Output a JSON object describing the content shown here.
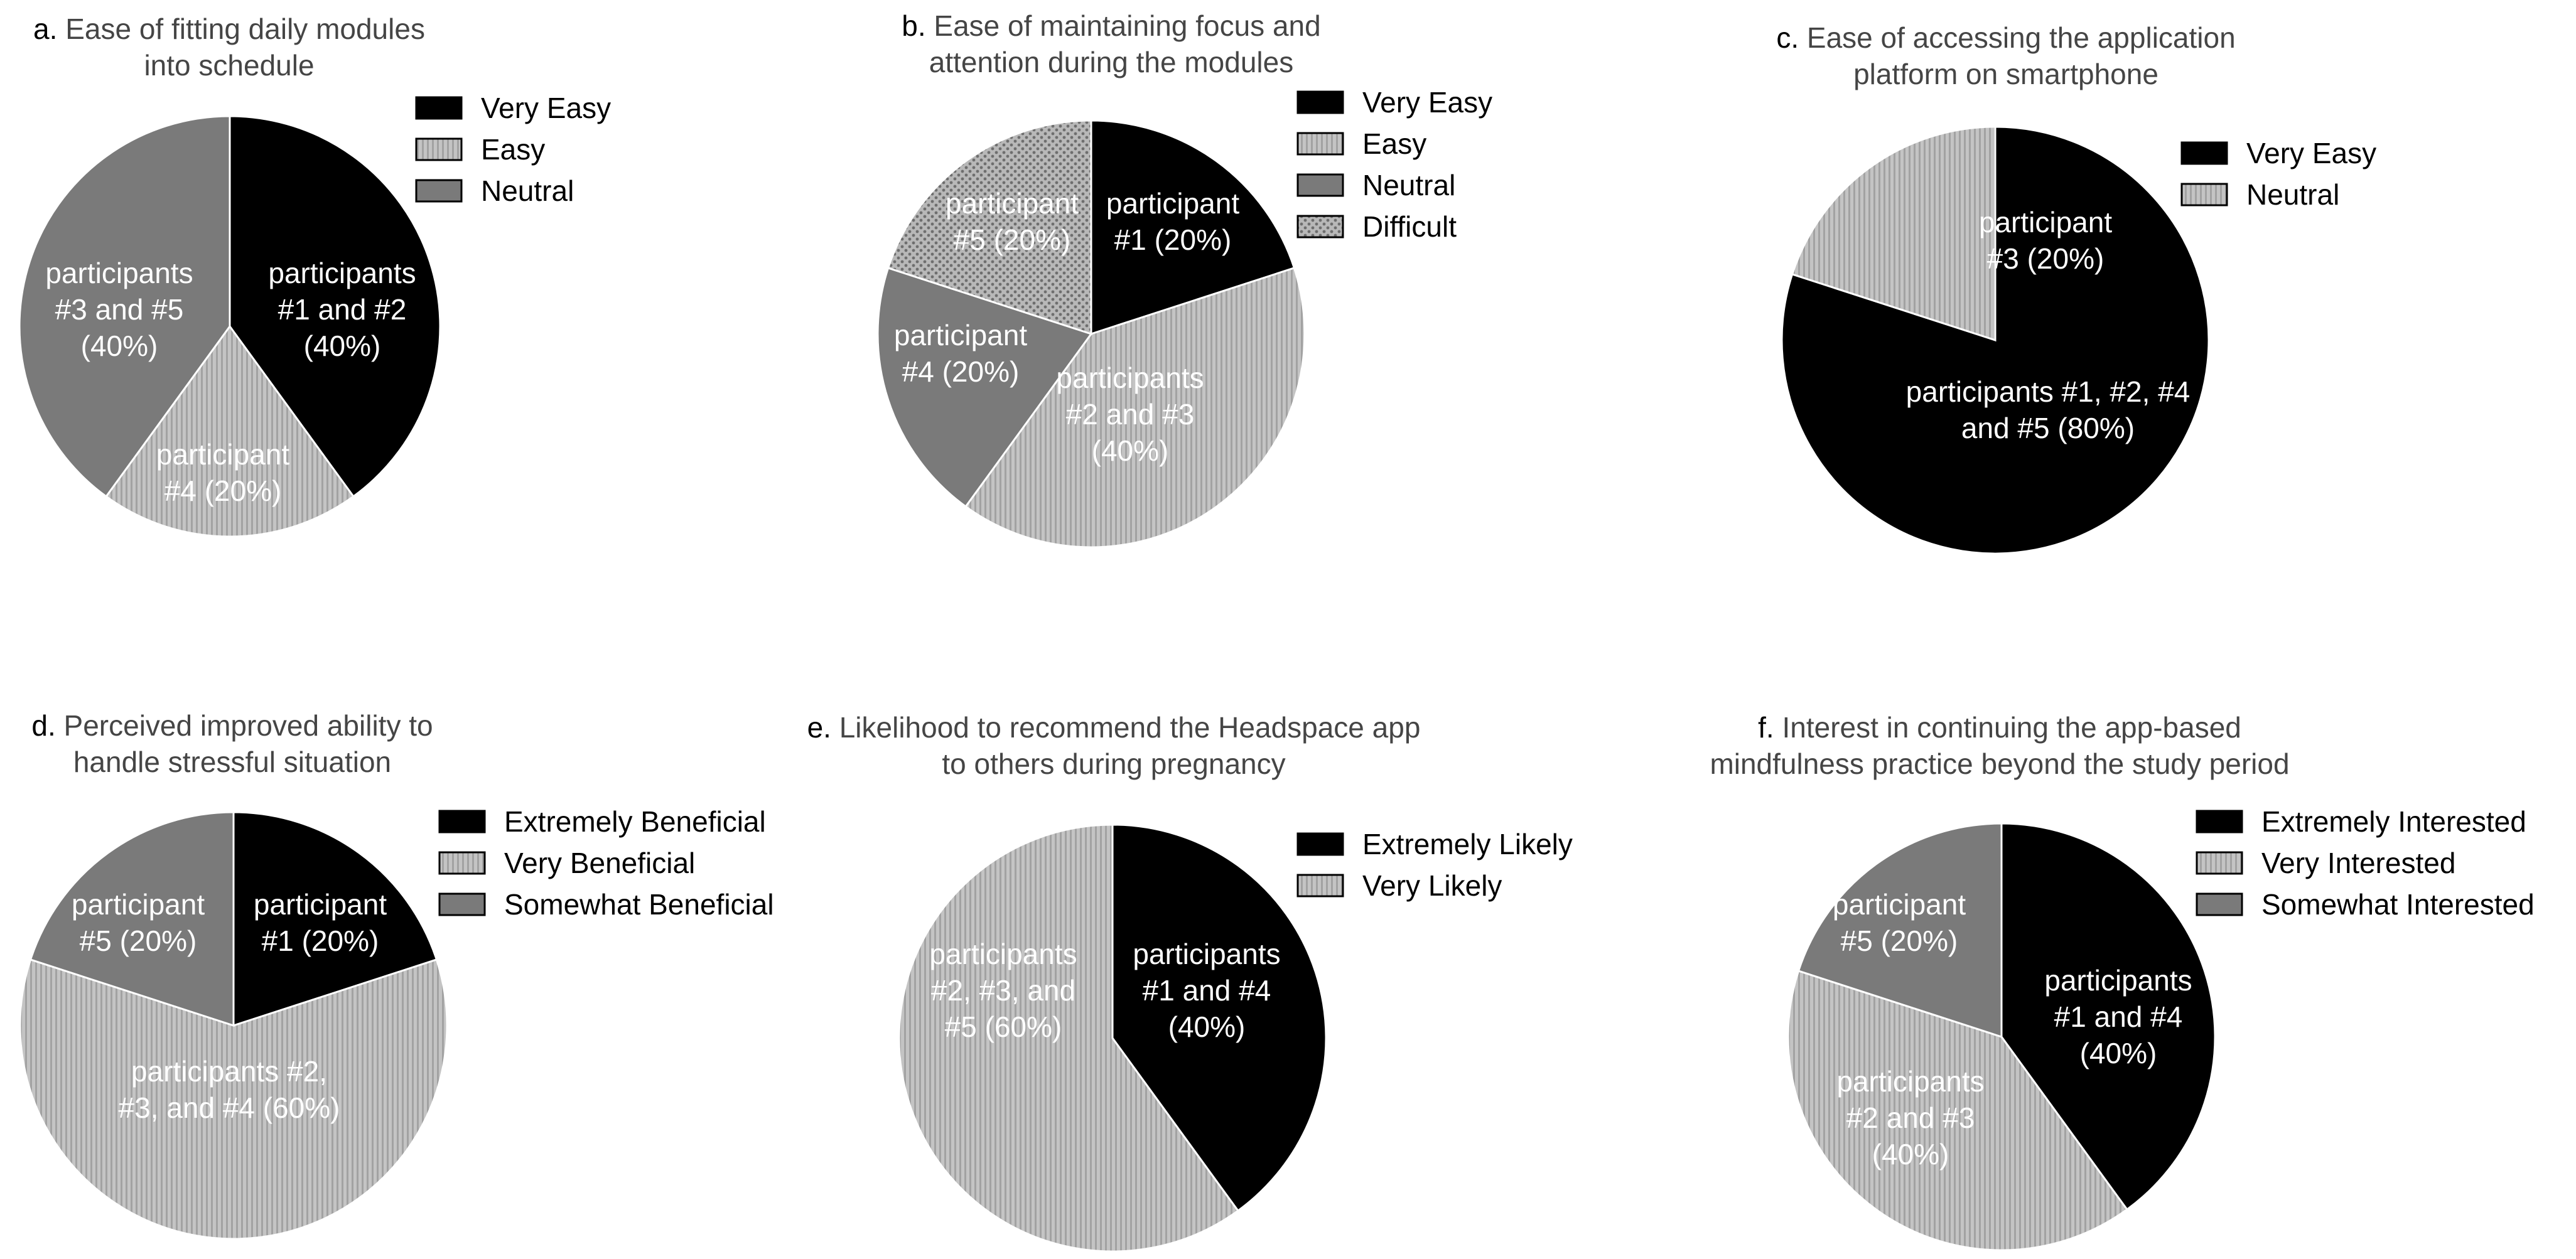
{
  "chart_data": [
    {
      "type": "pie",
      "panel": "a.",
      "title_lines": [
        "Ease of fitting daily modules",
        "into schedule"
      ],
      "categories": [
        "Very Easy",
        "Easy",
        "Neutral"
      ],
      "values": [
        40,
        20,
        40
      ],
      "slice_labels": [
        [
          "participants",
          "#1 and #2",
          "(40%)"
        ],
        [
          "participant",
          "#4 (20%)"
        ],
        [
          "participants",
          "#3 and #5",
          "(40%)"
        ]
      ],
      "fills": [
        "solid-black",
        "vertical-stripes",
        "solid-gray"
      ],
      "legend_position": "top-right"
    },
    {
      "type": "pie",
      "panel": "b.",
      "title_lines": [
        "Ease of maintaining focus and",
        "attention during the modules"
      ],
      "categories": [
        "Very Easy",
        "Easy",
        "Neutral",
        "Difficult"
      ],
      "values": [
        20,
        40,
        20,
        20
      ],
      "slice_labels": [
        [
          "participant",
          "#1 (20%)"
        ],
        [
          "participants",
          "#2 and #3",
          "(40%)"
        ],
        [
          "participant",
          "#4 (20%)"
        ],
        [
          "participant",
          "#5 (20%)"
        ]
      ],
      "fills": [
        "solid-black",
        "vertical-stripes",
        "solid-gray",
        "dots"
      ],
      "legend_position": "top-right"
    },
    {
      "type": "pie",
      "panel": "c.",
      "title_lines": [
        "Ease of accessing the application",
        "platform on smartphone"
      ],
      "categories": [
        "Very Easy",
        "Neutral"
      ],
      "values": [
        80,
        20
      ],
      "slice_labels": [
        [
          "participants #1, #2, #4",
          "and #5 (80%)"
        ],
        [
          "participant",
          "#3 (20%)"
        ]
      ],
      "fills": [
        "solid-black",
        "vertical-stripes"
      ],
      "legend_position": "top-right"
    },
    {
      "type": "pie",
      "panel": "d.",
      "title_lines": [
        "Perceived improved ability to",
        "handle stressful situation"
      ],
      "categories": [
        "Extremely Beneficial",
        "Very Beneficial",
        "Somewhat Beneficial"
      ],
      "values": [
        20,
        60,
        20
      ],
      "slice_labels": [
        [
          "participant",
          "#1 (20%)"
        ],
        [
          "participants #2,",
          "#3, and #4 (60%)"
        ],
        [
          "participant",
          "#5 (20%)"
        ]
      ],
      "fills": [
        "solid-black",
        "vertical-stripes",
        "solid-gray"
      ],
      "legend_position": "top-right"
    },
    {
      "type": "pie",
      "panel": "e.",
      "title_lines": [
        "Likelihood to recommend the Headspace app",
        "to others during pregnancy"
      ],
      "categories": [
        "Extremely Likely",
        "Very Likely"
      ],
      "values": [
        40,
        60
      ],
      "slice_labels": [
        [
          "participants",
          "#1 and #4",
          "(40%)"
        ],
        [
          "participants",
          "#2, #3, and",
          "#5 (60%)"
        ]
      ],
      "fills": [
        "solid-black",
        "vertical-stripes"
      ],
      "legend_position": "top-right"
    },
    {
      "type": "pie",
      "panel": "f.",
      "title_lines": [
        "Interest in continuing the app-based",
        "mindfulness practice beyond the study period"
      ],
      "categories": [
        "Extremely Interested",
        "Very Interested",
        "Somewhat Interested"
      ],
      "values": [
        40,
        40,
        20
      ],
      "slice_labels": [
        [
          "participants",
          "#1 and #4",
          "(40%)"
        ],
        [
          "participants",
          "#2 and #3",
          "(40%)"
        ],
        [
          "participant",
          "#5 (20%)"
        ]
      ],
      "fills": [
        "solid-black",
        "vertical-stripes",
        "solid-gray"
      ],
      "legend_position": "top-right"
    }
  ],
  "colors": {
    "black": "#000000",
    "gray": "#7a7a7a",
    "stripe_light": "#c4c4c4",
    "stripe_dark": "#a2a2a2",
    "dots_bg": "#b8b8b8",
    "dots_fg": "#6e6e6e",
    "title_prefix": "#000000",
    "title_text": "#454545",
    "label_text": "#ffffff"
  }
}
